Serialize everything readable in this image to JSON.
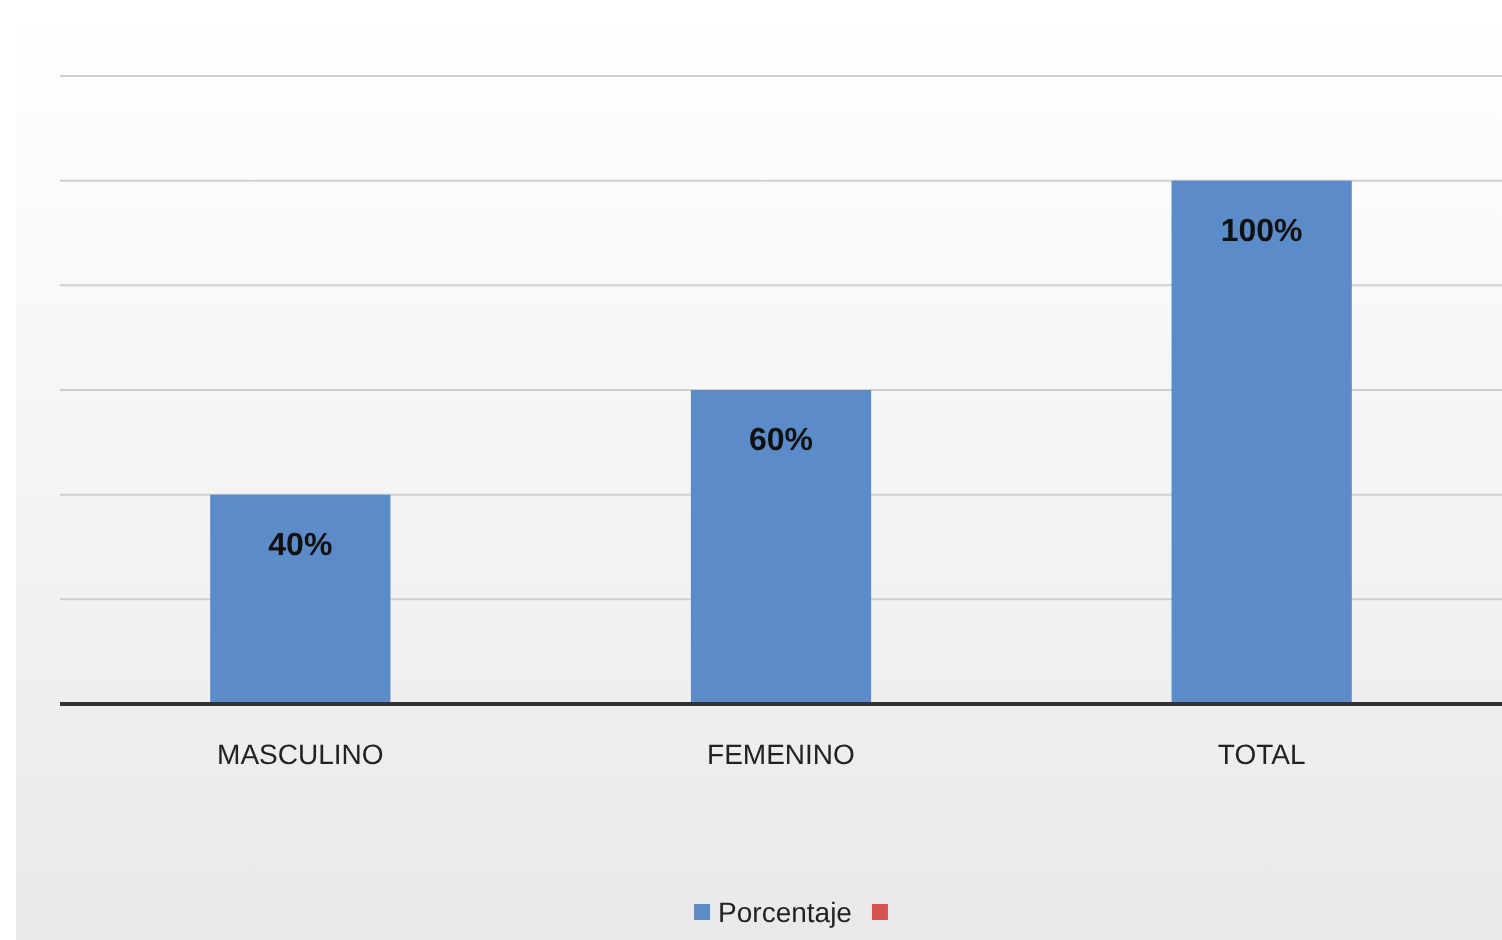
{
  "chart_data": {
    "type": "bar",
    "categories": [
      "MASCULINO",
      "FEMENINO",
      "TOTAL"
    ],
    "series": [
      {
        "name": "Porcentaje",
        "color": "#5b8bc8",
        "values": [
          40,
          60,
          100
        ],
        "value_labels": [
          "40%",
          "60%",
          "100%"
        ]
      }
    ],
    "ylim": [
      0,
      120
    ],
    "yticks": [
      {
        "value": 0,
        "label": null
      },
      {
        "value": 20,
        "label": null
      },
      {
        "value": 40,
        "label": null
      },
      {
        "value": 60,
        "label": null
      },
      {
        "value": 80,
        "label": null
      },
      {
        "value": 100,
        "label": null
      },
      {
        "value": 120,
        "label": null
      }
    ],
    "tick_labels": "x",
    "grid": "y",
    "legend": "bottom"
  }
}
